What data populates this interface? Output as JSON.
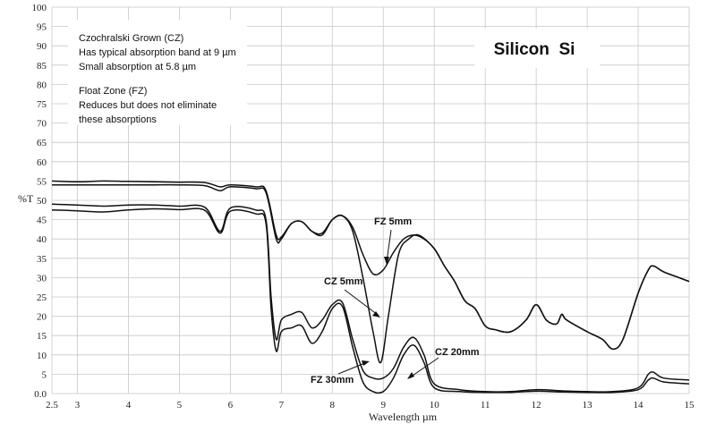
{
  "chart_data": {
    "type": "line",
    "title": "Silicon  Si",
    "xlabel": "Wavelength µm",
    "ylabel": "%T",
    "xlim": [
      2.5,
      15
    ],
    "ylim": [
      0,
      100
    ],
    "grid": true,
    "x_ticks": [
      "2.5",
      "3",
      "4",
      "5",
      "6",
      "7",
      "8",
      "9",
      "10",
      "11",
      "12",
      "13",
      "14",
      "15"
    ],
    "x_tick_values": [
      2.5,
      3,
      4,
      5,
      6,
      7,
      8,
      9,
      10,
      11,
      12,
      13,
      14,
      15
    ],
    "y_ticks": [
      "0.0",
      "5",
      "10",
      "15",
      "20",
      "25",
      "30",
      "35",
      "40",
      "45",
      "50",
      "55",
      "60",
      "65",
      "70",
      "75",
      "80",
      "85",
      "90",
      "95",
      "100"
    ],
    "y_tick_values": [
      0,
      5,
      10,
      15,
      20,
      25,
      30,
      35,
      40,
      45,
      50,
      55,
      60,
      65,
      70,
      75,
      80,
      85,
      90,
      95,
      100
    ],
    "notes": [
      "Czochralski Grown (CZ)",
      "Has typical absorption band at 9 µm",
      "Small absorption at 5.8 µm",
      "Float Zone (FZ)",
      "Reduces but does not eliminate",
      "these absorptions"
    ],
    "series": [
      {
        "name": "FZ 5mm",
        "x": [
          2.5,
          3.0,
          3.5,
          4.0,
          4.5,
          5.0,
          5.5,
          5.8,
          6.0,
          6.5,
          6.7,
          6.9,
          7.0,
          7.2,
          7.4,
          7.6,
          7.8,
          8.0,
          8.2,
          8.4,
          8.6,
          8.8,
          9.0,
          9.2,
          9.4,
          9.6,
          9.8,
          10.0,
          10.2,
          10.4,
          10.6,
          10.8,
          11.0,
          11.2,
          11.5,
          11.8,
          12.0,
          12.2,
          12.4,
          12.5,
          12.6,
          13.0,
          13.3,
          13.5,
          13.7,
          14.0,
          14.2,
          14.3,
          14.5,
          14.8,
          15.0
        ],
        "y": [
          55.0,
          54.8,
          55.0,
          54.9,
          54.8,
          54.7,
          54.6,
          53.5,
          54.0,
          53.5,
          52.5,
          41.0,
          40.5,
          44.0,
          44.5,
          42.0,
          41.5,
          45.0,
          46.0,
          43.0,
          36.0,
          31.0,
          32.0,
          36.5,
          40.0,
          41.0,
          40.0,
          37.5,
          33.0,
          29.0,
          24.0,
          22.0,
          17.5,
          16.5,
          16.0,
          19.0,
          23.0,
          19.0,
          18.0,
          20.5,
          19.0,
          16.0,
          14.0,
          11.5,
          14.0,
          26.0,
          32.0,
          33.0,
          31.5,
          30.0,
          29.0
        ]
      },
      {
        "name": "CZ 5mm",
        "x": [
          2.5,
          3.0,
          3.5,
          4.0,
          4.5,
          5.0,
          5.5,
          5.8,
          6.0,
          6.5,
          6.7,
          6.9,
          7.0,
          7.2,
          7.4,
          7.6,
          7.8,
          8.0,
          8.2,
          8.4,
          8.6,
          8.8,
          8.95,
          9.1,
          9.3,
          9.5,
          9.7,
          10.0,
          10.2,
          10.4,
          10.6,
          10.8,
          11.0,
          11.2,
          11.5,
          11.8,
          12.0,
          12.2,
          12.4,
          12.5,
          12.6,
          13.0,
          13.3,
          13.5,
          13.7,
          14.0,
          14.2,
          14.3,
          14.5,
          14.8,
          15.0
        ],
        "y": [
          54.0,
          54.0,
          54.0,
          54.0,
          54.0,
          54.0,
          53.8,
          52.5,
          53.5,
          53.0,
          52.0,
          40.0,
          40.0,
          44.0,
          44.5,
          42.0,
          41.0,
          45.0,
          46.0,
          42.0,
          30.0,
          16.0,
          8.0,
          20.0,
          36.0,
          40.0,
          41.0,
          37.5,
          33.0,
          29.0,
          24.0,
          22.0,
          17.5,
          16.5,
          16.0,
          19.0,
          23.0,
          19.0,
          18.0,
          20.5,
          19.0,
          16.0,
          14.0,
          11.5,
          14.0,
          26.0,
          32.0,
          33.0,
          31.5,
          30.0,
          29.0
        ]
      },
      {
        "name": "FZ 30mm",
        "x": [
          2.5,
          3.0,
          3.5,
          4.0,
          4.5,
          5.0,
          5.5,
          5.8,
          6.0,
          6.5,
          6.7,
          6.8,
          6.9,
          7.0,
          7.2,
          7.4,
          7.6,
          7.8,
          8.0,
          8.2,
          8.4,
          8.6,
          8.8,
          9.0,
          9.2,
          9.4,
          9.6,
          9.8,
          10.0,
          10.5,
          11.0,
          11.5,
          12.0,
          12.5,
          13.0,
          13.5,
          14.0,
          14.2,
          14.3,
          14.5,
          15.0
        ],
        "y": [
          49.0,
          48.8,
          48.5,
          48.8,
          48.8,
          48.5,
          48.2,
          42.0,
          48.0,
          47.5,
          45.0,
          25.0,
          14.0,
          19.0,
          20.5,
          21.0,
          17.0,
          19.0,
          23.0,
          23.5,
          14.0,
          6.0,
          4.0,
          4.0,
          6.5,
          12.0,
          14.5,
          10.0,
          2.5,
          1.0,
          0.5,
          0.5,
          1.0,
          0.7,
          0.5,
          0.5,
          1.5,
          5.0,
          5.5,
          4.0,
          3.5
        ]
      },
      {
        "name": "CZ 20mm",
        "x": [
          2.5,
          3.0,
          3.5,
          4.0,
          4.5,
          5.0,
          5.5,
          5.8,
          6.0,
          6.5,
          6.7,
          6.8,
          6.9,
          7.0,
          7.2,
          7.4,
          7.6,
          7.8,
          8.0,
          8.2,
          8.4,
          8.6,
          8.8,
          9.0,
          9.2,
          9.4,
          9.6,
          9.8,
          10.0,
          10.5,
          11.0,
          11.5,
          12.0,
          12.5,
          13.0,
          13.5,
          14.0,
          14.2,
          14.3,
          14.5,
          15.0
        ],
        "y": [
          47.5,
          47.3,
          47.0,
          47.5,
          47.8,
          47.6,
          47.4,
          41.5,
          47.2,
          46.5,
          44.0,
          22.0,
          11.0,
          16.0,
          17.0,
          17.5,
          13.0,
          16.0,
          22.0,
          22.5,
          12.0,
          3.0,
          0.5,
          0.5,
          4.0,
          10.0,
          12.5,
          8.0,
          1.5,
          0.5,
          0.3,
          0.3,
          0.6,
          0.4,
          0.3,
          0.3,
          1.0,
          3.5,
          4.0,
          3.0,
          2.5
        ]
      }
    ]
  }
}
